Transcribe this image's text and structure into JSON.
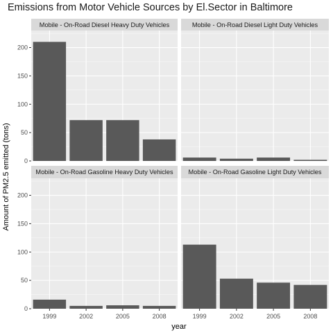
{
  "chart_data": {
    "type": "bar",
    "title": "Emissions from Motor Vehicle Sources by El.Sector in Baltimore",
    "xlabel": "year",
    "ylabel": "Amount of PM2.5 emitted (tons)",
    "categories": [
      "1999",
      "2002",
      "2005",
      "2008"
    ],
    "ylim": [
      0,
      230
    ],
    "yticks": [
      0,
      50,
      100,
      150,
      200
    ],
    "grid": true,
    "facets": [
      {
        "name": "Mobile - On-Road Diesel Heavy Duty Vehicles",
        "values": [
          210,
          72,
          72,
          38
        ]
      },
      {
        "name": "Mobile - On-Road Diesel Light Duty Vehicles",
        "values": [
          6,
          4,
          6,
          2
        ]
      },
      {
        "name": "Mobile - On-Road Gasoline Heavy Duty Vehicles",
        "values": [
          16,
          5,
          6,
          5
        ]
      },
      {
        "name": "Mobile - On-Road Gasoline Light Duty Vehicles",
        "values": [
          113,
          53,
          46,
          42
        ]
      }
    ]
  },
  "colors": {
    "panel_background": "#ebebeb",
    "strip_background": "#d9d9d9",
    "bar": "#595959",
    "grid_major": "#ffffff"
  }
}
